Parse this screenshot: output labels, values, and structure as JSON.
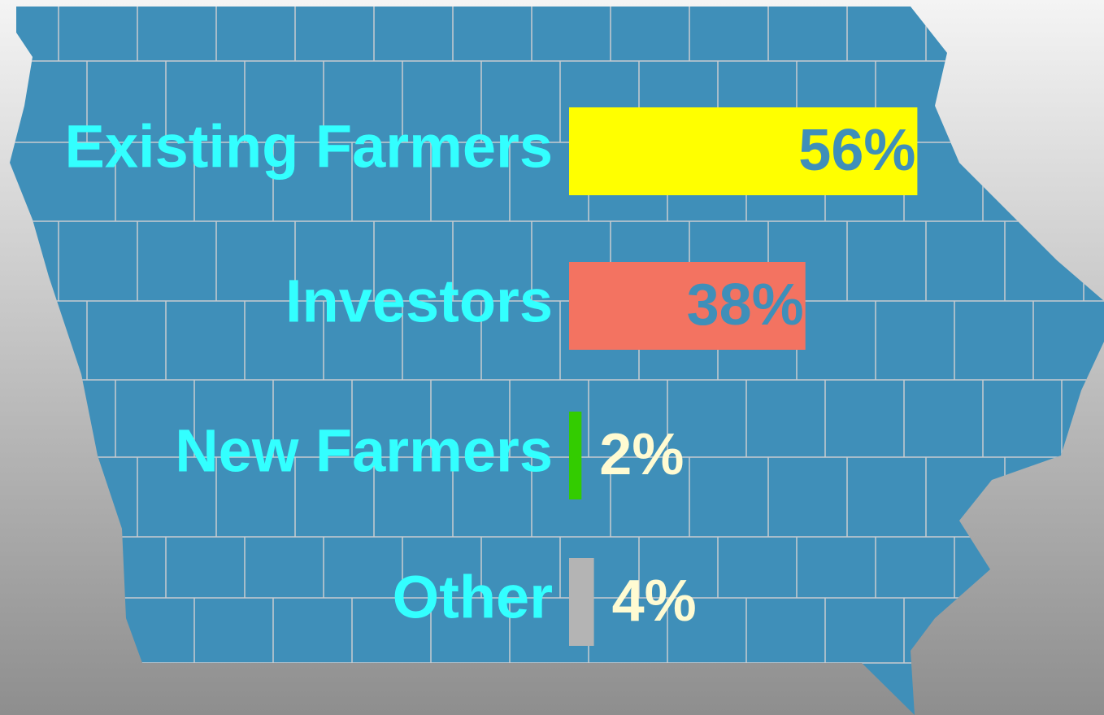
{
  "chart_data": {
    "type": "bar",
    "categories": [
      "Existing Farmers",
      "Investors",
      "New Farmers",
      "Other"
    ],
    "values": [
      56,
      38,
      2,
      4
    ],
    "value_labels": [
      "56%",
      "38%",
      "2%",
      "4%"
    ],
    "colors": [
      "#ffff00",
      "#f37361",
      "#33cc00",
      "#b4b4b4"
    ]
  }
}
